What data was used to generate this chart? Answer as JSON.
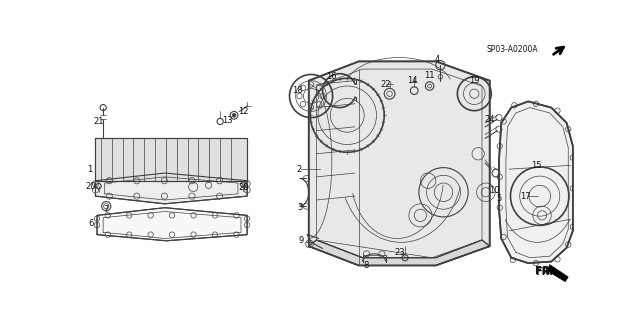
{
  "bg_color": "#ffffff",
  "line_color": "#404040",
  "label_color": "#111111",
  "diagram_code": "SP03-A0200A",
  "figsize": [
    6.4,
    3.19
  ],
  "dpi": 100
}
